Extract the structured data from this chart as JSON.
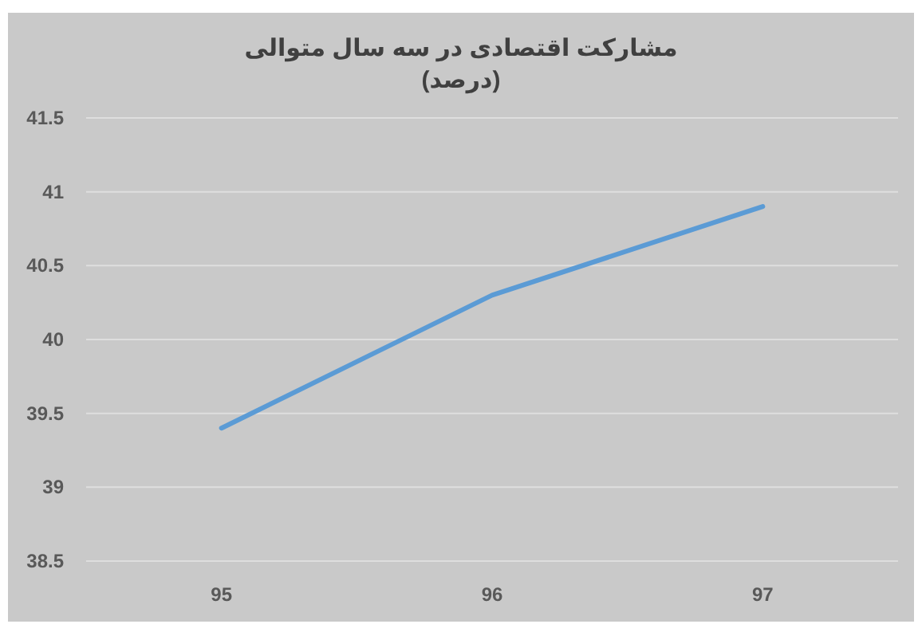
{
  "chart_data": {
    "type": "line",
    "title": "مشارکت اقتصادی در سه سال متوالی",
    "subtitle": "(درصد)",
    "categories": [
      "95",
      "96",
      "97"
    ],
    "series": [
      {
        "color": "#5b9bd5",
        "values": [
          39.4,
          40.3,
          40.9
        ]
      }
    ],
    "ylim": [
      38.5,
      41.5
    ],
    "yticks": [
      38.5,
      39,
      39.5,
      40,
      40.5,
      41,
      41.5
    ],
    "grid": "y",
    "marker": "none",
    "line_style": "solid"
  }
}
